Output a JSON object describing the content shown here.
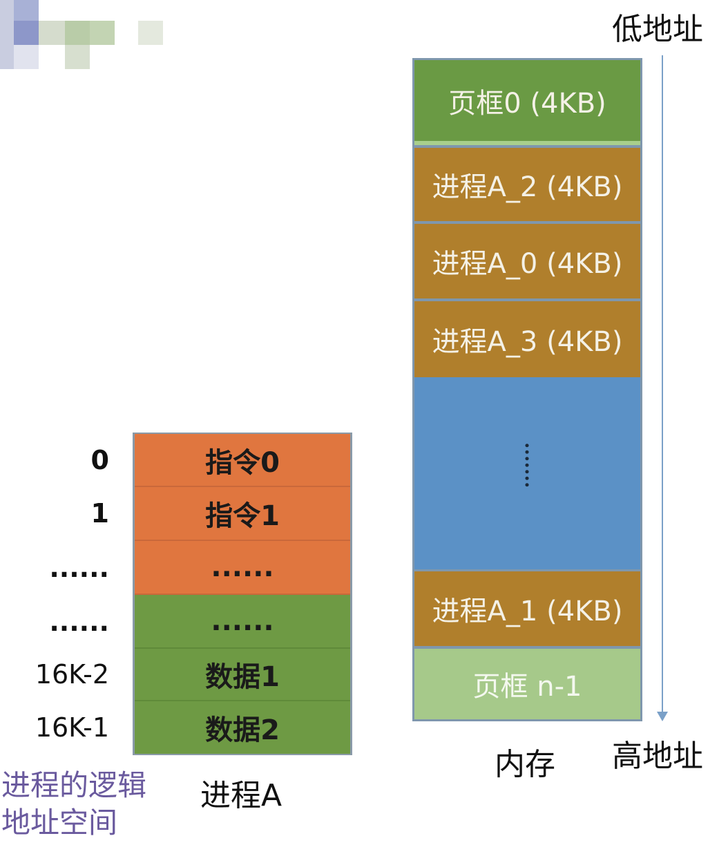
{
  "process": {
    "cells": [
      {
        "address": "0",
        "content": "指令0",
        "color": "#e0763f"
      },
      {
        "address": "1",
        "content": "指令1",
        "color": "#e0763f"
      },
      {
        "address": "......",
        "content": "......",
        "color": "#e0763f"
      },
      {
        "address": "......",
        "content": "......",
        "color": "#6e9a44"
      },
      {
        "address": "16K-2",
        "content": "数据1",
        "color": "#6e9a44"
      },
      {
        "address": "16K-1",
        "content": "数据2",
        "color": "#6e9a44"
      }
    ],
    "name": "进程A",
    "caption_line1": "进程的逻辑",
    "caption_line2": "地址空间"
  },
  "memory": {
    "frames": [
      {
        "label": "页框0 (4KB)",
        "color": "#6a9a44"
      },
      {
        "label": "进程A_2 (4KB)",
        "color": "#b07f2c"
      },
      {
        "label": "进程A_0 (4KB)",
        "color": "#b07f2c"
      },
      {
        "label": "进程A_3 (4KB)",
        "color": "#b07f2c"
      },
      {
        "label": "",
        "color": "#5b91c6"
      },
      {
        "label": "进程A_1 (4KB)",
        "color": "#b07f2c"
      },
      {
        "label": "页框 n-1",
        "color": "#a6c98a"
      }
    ],
    "name": "内存",
    "low_address": "低地址",
    "high_address": "高地址"
  }
}
